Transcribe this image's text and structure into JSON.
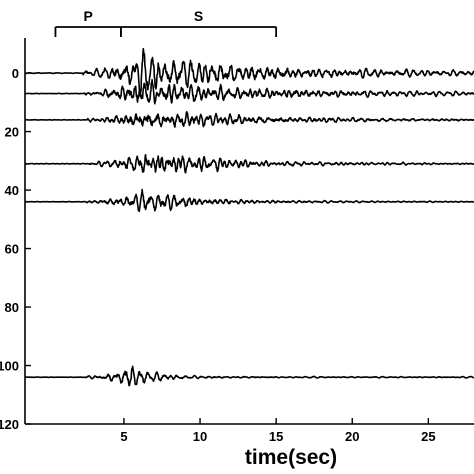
{
  "chart_data": {
    "type": "line",
    "xlabel": "time(sec)",
    "ylabel": "",
    "xlim": [
      -1.5,
      28
    ],
    "ylim": [
      120,
      -12
    ],
    "x_ticks": [
      5,
      10,
      15,
      20,
      25
    ],
    "x_tick_labels": [
      "5",
      "10",
      "15",
      "20",
      "25"
    ],
    "y_ticks": [
      0,
      20,
      40,
      60,
      80,
      100,
      120
    ],
    "y_tick_labels": [
      "0",
      "20",
      "40",
      "60",
      "80",
      "100",
      "120"
    ],
    "grid": false,
    "legend": "none",
    "phase_markers": [
      {
        "label": "P",
        "start": 0.5,
        "end": 4.8
      },
      {
        "label": "S",
        "start": 4.8,
        "end": 15.0
      }
    ],
    "series": [
      {
        "offset": 0,
        "onset": 2.3,
        "peak_time": 6.0,
        "peak_amplitude": 4.5,
        "decay": 0.11,
        "seed": 11
      },
      {
        "offset": 7,
        "onset": 2.4,
        "peak_time": 5.8,
        "peak_amplitude": 3.2,
        "decay": 0.11,
        "seed": 23
      },
      {
        "offset": 16,
        "onset": 2.6,
        "peak_time": 5.9,
        "peak_amplitude": 2.8,
        "decay": 0.13,
        "seed": 37
      },
      {
        "offset": 31,
        "onset": 2.7,
        "peak_time": 6.4,
        "peak_amplitude": 3.0,
        "decay": 0.22,
        "seed": 41
      },
      {
        "offset": 44,
        "onset": 2.5,
        "peak_time": 6.5,
        "peak_amplitude": 2.8,
        "decay": 0.28,
        "seed": 53
      },
      {
        "offset": 104,
        "onset": 2.5,
        "peak_time": 5.3,
        "peak_amplitude": 2.4,
        "decay": 0.55,
        "seed": 67
      }
    ]
  }
}
